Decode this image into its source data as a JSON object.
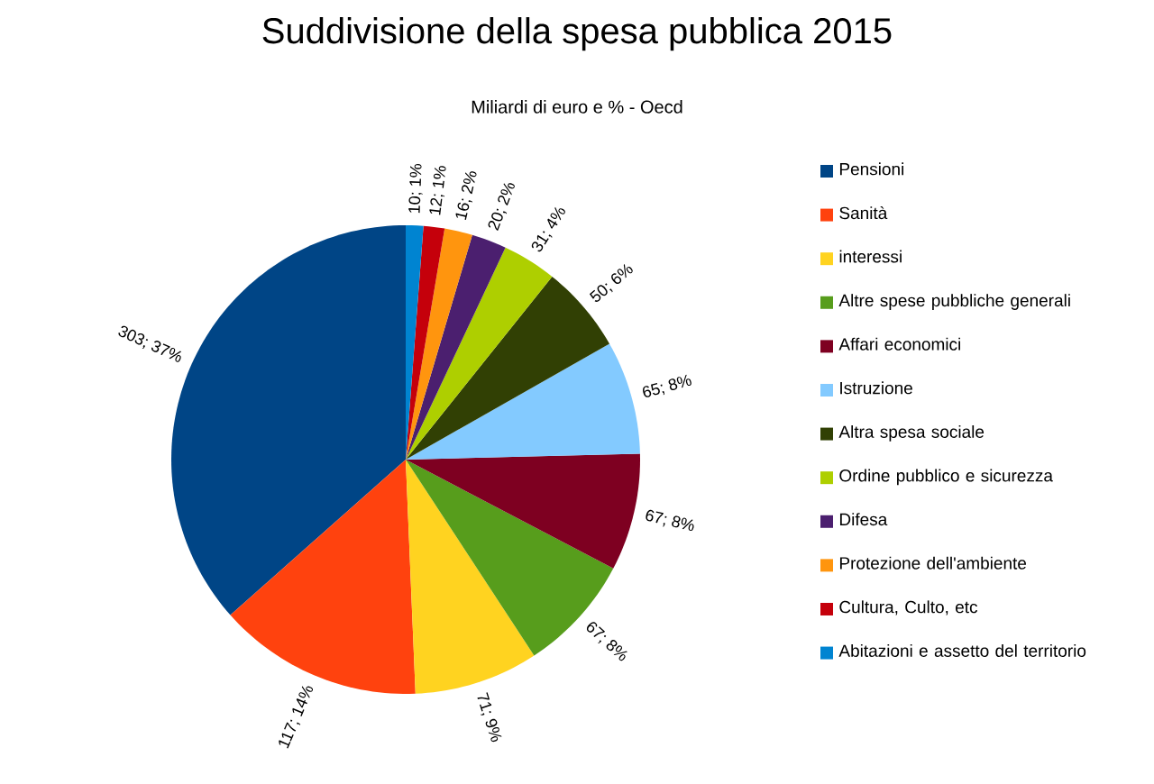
{
  "chart_data": {
    "type": "pie",
    "title": "Suddivisione della spesa pubblica 2015",
    "subtitle": "Miliardi di euro e % - Oecd",
    "categories": [
      "Pensioni",
      "Sanità",
      "interessi",
      "Altre spese pubbliche generali",
      "Affari economici",
      "Istruzione",
      "Altra spesa sociale",
      "Ordine pubblico e sicurezza",
      "Difesa",
      "Protezione dell'ambiente",
      "Cultura, Culto, etc",
      "Abitazioni e assetto del territorio"
    ],
    "values": [
      303,
      117,
      71,
      67,
      67,
      65,
      50,
      31,
      20,
      16,
      12,
      10
    ],
    "value_labels": [
      "303; 37%",
      "117; 14%",
      "71; 9%",
      "67; 8%",
      "67; 8%",
      "65; 8%",
      "50; 6%",
      "31; 4%",
      "20; 2%",
      "16; 2%",
      "12; 1%",
      "10; 1%"
    ],
    "colors": [
      "#004586",
      "#ff420e",
      "#ffd320",
      "#579d1c",
      "#7e0021",
      "#83caff",
      "#314004",
      "#aecf00",
      "#4b1f6f",
      "#ff950e",
      "#c5000b",
      "#0084d1"
    ],
    "legend": "right"
  }
}
